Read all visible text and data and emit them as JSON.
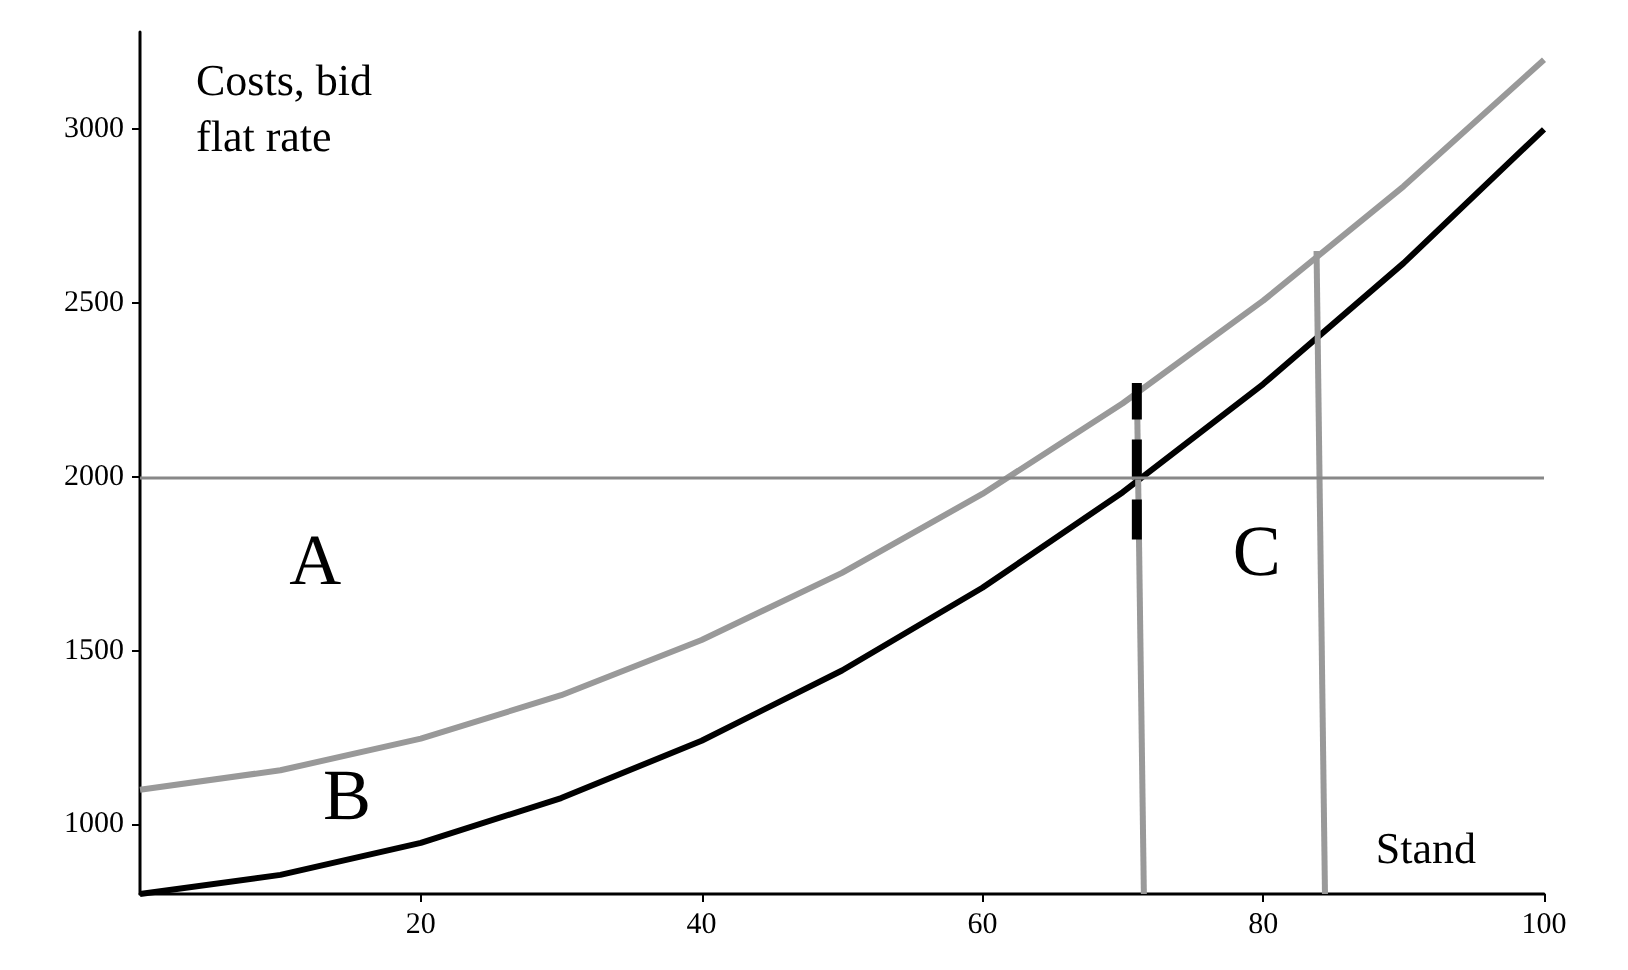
{
  "chart_data": {
    "type": "line",
    "ylabel": "Costs, bid\nflat rate",
    "xlabel": "Stand",
    "x": [
      0,
      10,
      20,
      30,
      40,
      50,
      60,
      70,
      80,
      90,
      100
    ],
    "series": [
      {
        "color": "#999999",
        "values": [
          1100,
          1156,
          1247,
          1372,
          1531,
          1724,
          1951,
          2212,
          2507,
          2836,
          3200
        ]
      },
      {
        "color": "#000000",
        "values": [
          800,
          855,
          947,
          1076,
          1241,
          1443,
          1681,
          1956,
          2267,
          2615,
          3000
        ]
      },
      {
        "color": "#999999",
        "x": [
          71.5,
          71
        ],
        "values": [
          800,
          2270
        ]
      },
      {
        "color": "#999999",
        "x": [
          84.4,
          83.8
        ],
        "values": [
          800,
          2650
        ]
      },
      {
        "color": "#000000",
        "x": [
          71,
          71
        ],
        "values": [
          1820,
          2270
        ],
        "line_style": "dashed"
      }
    ],
    "xlim": [
      0,
      100
    ],
    "xticks": [
      20,
      40,
      60,
      80,
      100
    ],
    "ylim": [
      800,
      3280
    ],
    "yticks": [
      1000,
      1500,
      2000,
      2500,
      3000
    ],
    "ref_lines": [
      {
        "axis": "y",
        "value": 2000,
        "color": "#888888"
      }
    ],
    "annotations": [
      "A",
      "B",
      "C"
    ],
    "grid": false,
    "marker": "none",
    "line_style": "solid"
  }
}
